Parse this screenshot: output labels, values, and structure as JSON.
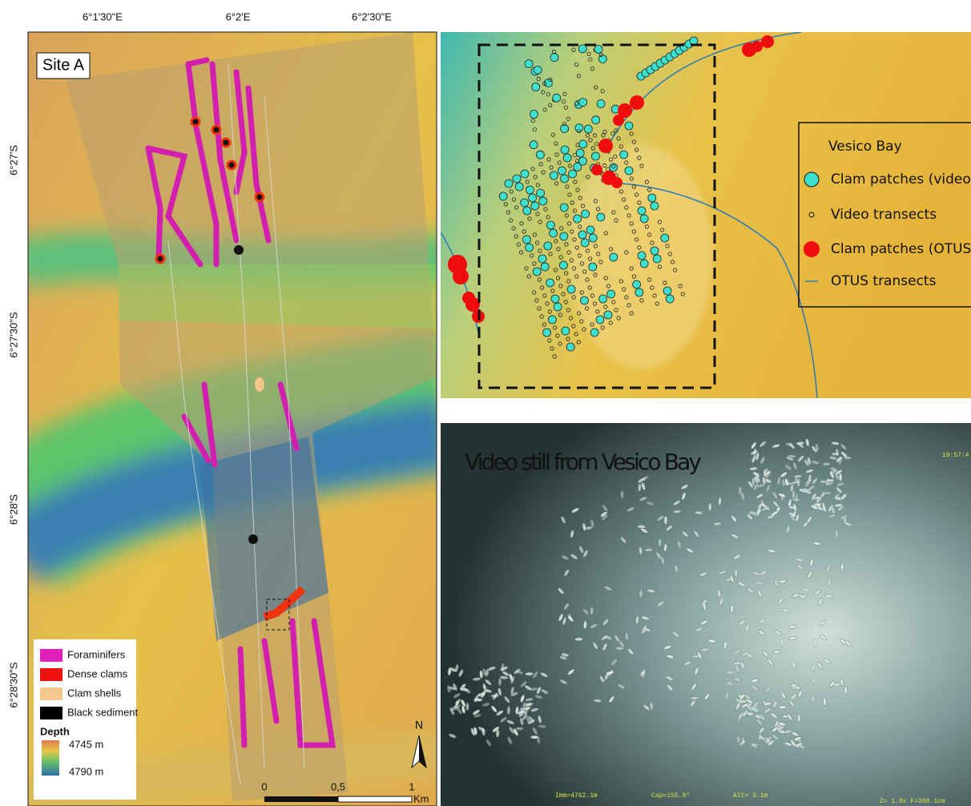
{
  "map": {
    "lon_labels": [
      "6°1'30\"E",
      "6°2'E",
      "6°2'30\"E"
    ],
    "lat_labels": [
      "6°27'S",
      "6°27'30\"S",
      "6°28'S",
      "6°28'30\"S"
    ],
    "site_label": "Site A",
    "legend": {
      "items": [
        "Foraminifers",
        "Dense clams",
        "Clam shells",
        "Black sediment"
      ],
      "depth_title": "Depth",
      "depth_top": "4745 m",
      "depth_bottom": "4790 m"
    },
    "scale": {
      "labels": [
        "0",
        "0,5",
        "1"
      ],
      "unit": "Km"
    },
    "north": "N"
  },
  "inset": {
    "title": "Vesico Bay",
    "items": [
      "Clam patches (video)",
      "Video transects",
      "Clam patches (OTUS)",
      "OTUS transects"
    ]
  },
  "video": {
    "caption": "Video still from Vesico Bay",
    "timestamp": "19:57:4",
    "overlay": [
      "Imm=4762.1m",
      "Cap=155.9°",
      "Alt=  3.1m",
      "Z= 1.0x  F=200.1cm"
    ]
  }
}
